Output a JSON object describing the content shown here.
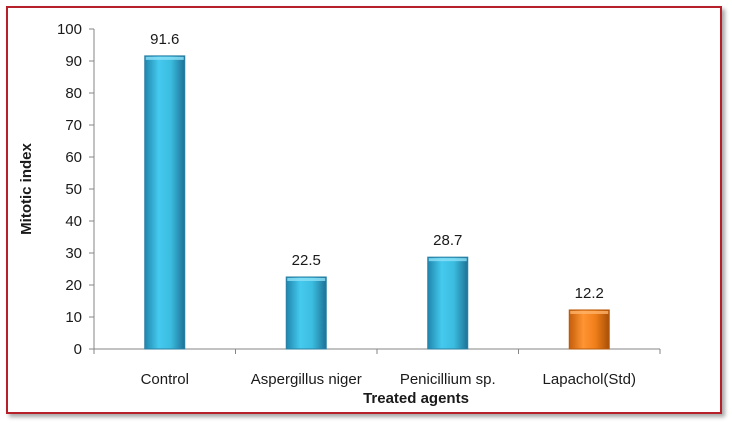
{
  "chart_data": {
    "type": "bar",
    "title": "",
    "xlabel": "Treated agents",
    "ylabel": "Mitotic index",
    "categories": [
      "Control",
      "Aspergillus niger",
      "Penicillium sp.",
      "Lapachol(Std)"
    ],
    "values": [
      91.6,
      22.5,
      28.7,
      12.2
    ],
    "value_labels": [
      "91.6",
      "22.5",
      "28.7",
      "12.2"
    ],
    "yticks": [
      "0",
      "10",
      "20",
      "30",
      "40",
      "50",
      "60",
      "70",
      "80",
      "90",
      "100"
    ],
    "ylim": [
      0,
      100
    ],
    "grid": false,
    "legend": "none",
    "colors": {
      "bar": "#3bbde0",
      "bar_dark": "#2a7fa3",
      "highlight_bar": "#f07f1a",
      "highlight_bar_dark": "#b85a0a",
      "frame": "#b5202a"
    },
    "highlight_index": 3
  }
}
